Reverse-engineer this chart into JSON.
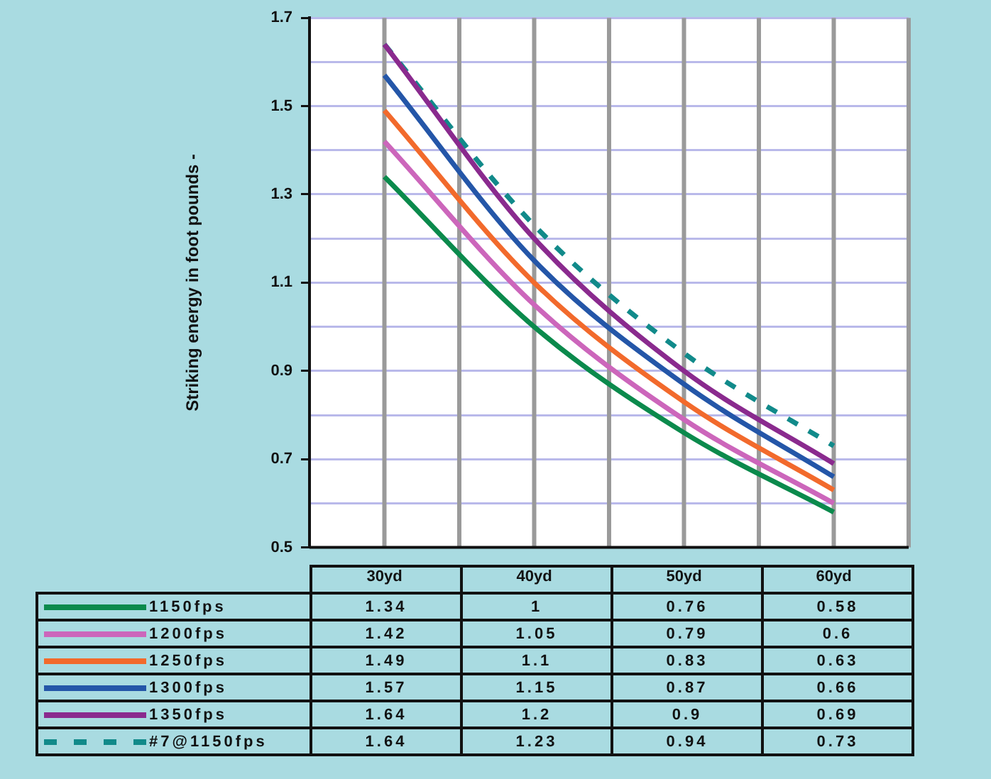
{
  "chart_data": {
    "type": "line",
    "ylabel": "Striking energy in foot pounds -",
    "categories": [
      "30yd",
      "40yd",
      "50yd",
      "60yd"
    ],
    "series": [
      {
        "name": "1150fps",
        "color": "#0b8a4c",
        "values": [
          1.34,
          1,
          0.76,
          0.58
        ]
      },
      {
        "name": "1200fps",
        "color": "#cc66bb",
        "values": [
          1.42,
          1.05,
          0.79,
          0.6
        ]
      },
      {
        "name": "1250fps",
        "color": "#f26a2c",
        "values": [
          1.49,
          1.1,
          0.83,
          0.63
        ]
      },
      {
        "name": "1300fps",
        "color": "#2456a8",
        "values": [
          1.57,
          1.15,
          0.87,
          0.66
        ]
      },
      {
        "name": "1350fps",
        "color": "#8a2a8e",
        "values": [
          1.64,
          1.2,
          0.9,
          0.69
        ]
      },
      {
        "name": "#7@1150fps",
        "color": "#118a8a",
        "values": [
          1.64,
          1.23,
          0.94,
          0.73
        ],
        "line_style": "dashed"
      }
    ],
    "ylim": [
      0.5,
      1.7
    ],
    "yticks": [
      0.5,
      {
        "value": 0.6,
        "label": null
      },
      0.7,
      {
        "value": 0.8,
        "label": null
      },
      0.9,
      {
        "value": 1.0,
        "label": null
      },
      1.1,
      {
        "value": 1.2,
        "label": null
      },
      1.3,
      {
        "value": 1.4,
        "label": null
      },
      1.5,
      {
        "value": 1.6,
        "label": null
      },
      1.7
    ],
    "grid": true,
    "legend": "bottom",
    "data_labels": true,
    "marker": "none",
    "line_style": "solid"
  }
}
